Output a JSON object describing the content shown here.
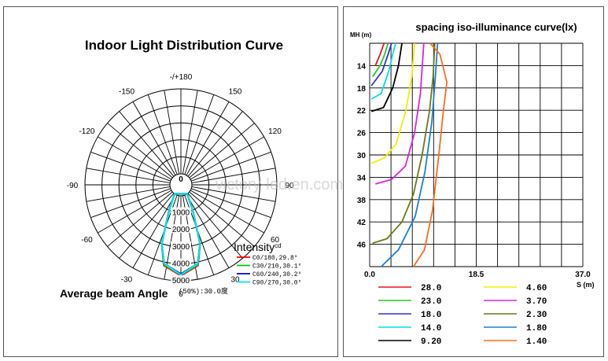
{
  "polar": {
    "title": "Indoor Light Distribution Curve",
    "angle_labels": [
      {
        "label": "-/+180",
        "deg": 180
      },
      {
        "label": "-150",
        "deg": -150
      },
      {
        "label": "150",
        "deg": 150
      },
      {
        "label": "-120",
        "deg": -120
      },
      {
        "label": "120",
        "deg": 120
      },
      {
        "label": "-90",
        "deg": -90
      },
      {
        "label": "90",
        "deg": 90
      },
      {
        "label": "-60",
        "deg": -60
      },
      {
        "label": "60",
        "deg": 60
      },
      {
        "label": "-30",
        "deg": -30
      },
      {
        "label": "30",
        "deg": 30
      },
      {
        "label": "0",
        "deg": 0
      }
    ],
    "center_label": "0",
    "radial_labels": [
      "1000",
      "2000",
      "3000",
      "4000",
      "5000"
    ],
    "intensity_label": "Intensity",
    "intensity_unit": "cd",
    "legend": [
      {
        "label": "C0/180,29.8°",
        "color": "#ff0000"
      },
      {
        "label": "C30/210,30.1°",
        "color": "#00cc00"
      },
      {
        "label": "C60/240,30.2°",
        "color": "#0000cc"
      },
      {
        "label": "C90/270,30.0°",
        "color": "#00e5e5"
      }
    ],
    "beam_label": "Average beam Angle",
    "beam_value": "(50%):30.0度",
    "watermark": "victory-led.en.com"
  },
  "chart_data": [
    {
      "type": "line",
      "title": "Indoor Light Distribution Curve",
      "coordinate": "polar",
      "rmax": 5000,
      "rticks": [
        1000,
        2000,
        3000,
        4000,
        5000
      ],
      "angle_step": 10,
      "series": [
        {
          "name": "C0/180,29.8°",
          "color": "#ff0000",
          "points": [
            [
              -35,
              0
            ],
            [
              -25,
              1000
            ],
            [
              -18,
              3000
            ],
            [
              -12,
              4200
            ],
            [
              0,
              4700
            ],
            [
              12,
              4200
            ],
            [
              18,
              3000
            ],
            [
              25,
              1000
            ],
            [
              35,
              0
            ]
          ]
        },
        {
          "name": "C30/210,30.1°",
          "color": "#00cc00",
          "points": [
            [
              -35,
              0
            ],
            [
              -25,
              1000
            ],
            [
              -18,
              3000
            ],
            [
              -12,
              4150
            ],
            [
              0,
              4650
            ],
            [
              12,
              4150
            ],
            [
              18,
              3000
            ],
            [
              25,
              1000
            ],
            [
              35,
              0
            ]
          ]
        },
        {
          "name": "C60/240,30.2°",
          "color": "#0000cc",
          "points": [
            [
              -35,
              0
            ],
            [
              -25,
              1000
            ],
            [
              -18,
              3000
            ],
            [
              -12,
              4100
            ],
            [
              0,
              4600
            ],
            [
              12,
              4100
            ],
            [
              18,
              3000
            ],
            [
              25,
              1000
            ],
            [
              35,
              0
            ]
          ]
        },
        {
          "name": "C90/270,30.0°",
          "color": "#00e5e5",
          "points": [
            [
              -35,
              0
            ],
            [
              -25,
              1000
            ],
            [
              -18,
              3000
            ],
            [
              -12,
              4100
            ],
            [
              0,
              4650
            ],
            [
              12,
              4100
            ],
            [
              18,
              3000
            ],
            [
              25,
              1000
            ],
            [
              35,
              0
            ]
          ]
        }
      ]
    },
    {
      "type": "line",
      "title": "spacing iso-illuminance curve(lx)",
      "ylabel": "MH (m)",
      "xlabel": "S (m)",
      "xlim": [
        0,
        37.0
      ],
      "ylim": [
        10,
        50
      ],
      "x_ticks": [
        "0.0",
        "18.5",
        "37.0"
      ],
      "y_ticks": [
        "14",
        "18",
        "22",
        "26",
        "30",
        "34",
        "38",
        "42",
        "46"
      ],
      "y_tick_values": [
        14,
        18,
        22,
        26,
        30,
        34,
        38,
        42,
        46
      ],
      "series": [
        {
          "name": "28.0",
          "color": "#e8141e",
          "points": [
            [
              1.0,
              14
            ],
            [
              1.8,
              12.0
            ],
            [
              2.5,
              10.0
            ]
          ]
        },
        {
          "name": "23.0",
          "color": "#22cc22",
          "points": [
            [
              0.5,
              16
            ],
            [
              1.8,
              14
            ],
            [
              2.6,
              12
            ],
            [
              3.2,
              10.0
            ]
          ]
        },
        {
          "name": "18.0",
          "color": "#3333cc",
          "points": [
            [
              0.3,
              17.6
            ],
            [
              2.2,
              15
            ],
            [
              3.2,
              12
            ],
            [
              3.8,
              10.0
            ]
          ]
        },
        {
          "name": "14.0",
          "color": "#00e0e0",
          "points": [
            [
              0.3,
              20
            ],
            [
              2.0,
              19
            ],
            [
              3.3,
              15
            ],
            [
              4.0,
              12
            ],
            [
              4.5,
              10.0
            ]
          ]
        },
        {
          "name": "9.20",
          "color": "#000000",
          "points": [
            [
              0.3,
              22.2
            ],
            [
              2.4,
              21.5
            ],
            [
              4.0,
              18
            ],
            [
              5.0,
              14
            ],
            [
              5.6,
              10.0
            ]
          ]
        },
        {
          "name": "4.60",
          "color": "#f0f000",
          "points": [
            [
              0.3,
              31.5
            ],
            [
              2.6,
              30.5
            ],
            [
              4.6,
              28
            ],
            [
              6.3,
              22
            ],
            [
              7.3,
              16
            ],
            [
              7.8,
              10.0
            ]
          ]
        },
        {
          "name": "3.70",
          "color": "#dd22dd",
          "points": [
            [
              1.0,
              35.2
            ],
            [
              3.8,
              34.4
            ],
            [
              6.2,
              32
            ],
            [
              7.8,
              26
            ],
            [
              8.8,
              19
            ],
            [
              9.2,
              13
            ],
            [
              9.4,
              10.0
            ]
          ]
        },
        {
          "name": "2.30",
          "color": "#6e7a10",
          "points": [
            [
              0.5,
              45.8
            ],
            [
              3.0,
              45.0
            ],
            [
              5.6,
              42
            ],
            [
              7.6,
              37
            ],
            [
              9.1,
              30
            ],
            [
              10.4,
              22
            ],
            [
              11.0,
              16
            ],
            [
              11.3,
              10.0
            ]
          ]
        },
        {
          "name": "1.80",
          "color": "#1a7ee0",
          "points": [
            [
              2.0,
              50.0
            ],
            [
              5.0,
              47
            ],
            [
              7.9,
              41
            ],
            [
              9.6,
              33
            ],
            [
              10.8,
              24
            ],
            [
              11.4,
              16
            ],
            [
              11.8,
              10.0
            ]
          ]
        },
        {
          "name": "1.40",
          "color": "#ff6a1a",
          "points": [
            [
              7.6,
              50.0
            ],
            [
              9.5,
              47
            ],
            [
              10.9,
              40
            ],
            [
              12.0,
              30
            ],
            [
              12.8,
              22
            ],
            [
              13.4,
              17
            ],
            [
              12.2,
              12
            ],
            [
              10.5,
              10.0
            ]
          ]
        }
      ]
    }
  ]
}
